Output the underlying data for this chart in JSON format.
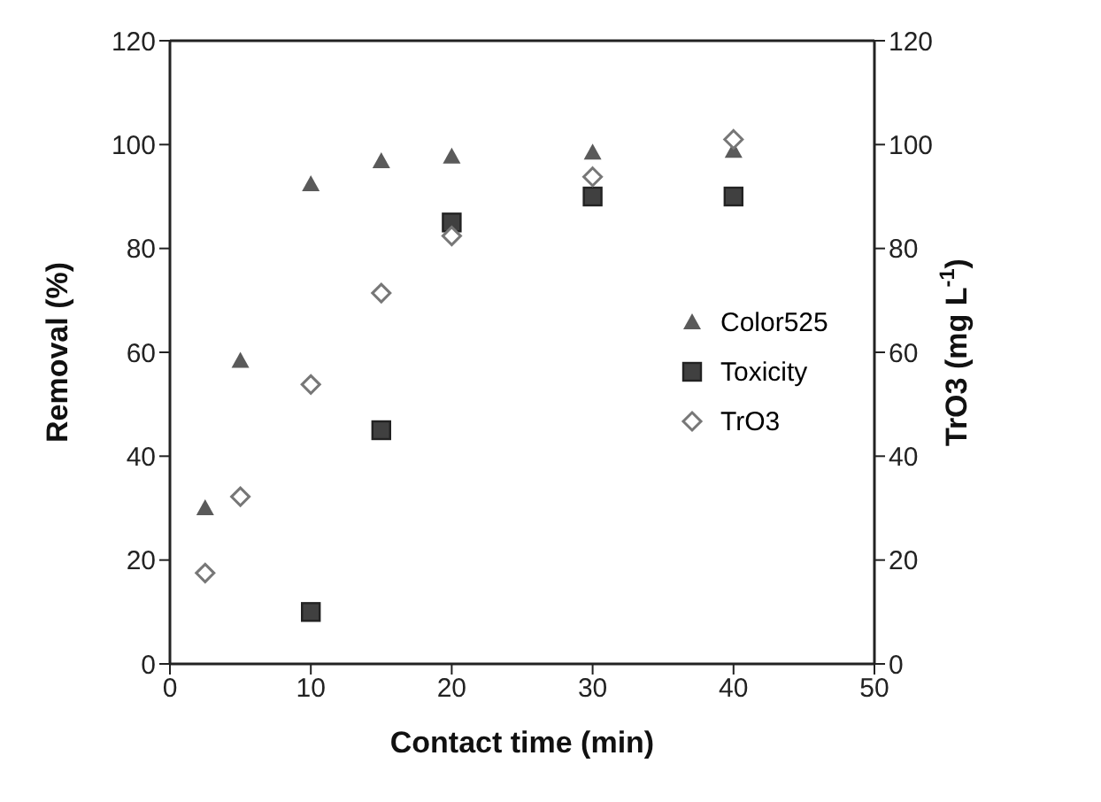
{
  "chart_data": {
    "type": "scatter",
    "xlabel": "Contact time (min)",
    "ylabel": "Removal (%)",
    "y2label": "TrO3 (mg L$^{-1}$)",
    "x": [
      2.5,
      5,
      10,
      15,
      20,
      30,
      40
    ],
    "series": [
      {
        "name": "Color525",
        "color": "#5a5a5a",
        "marker": "triangle",
        "values": [
          30,
          58.4,
          92.4,
          96.8,
          97.7,
          98.5,
          98.8
        ]
      },
      {
        "name": "Toxicity",
        "color": "#404040",
        "marker": "square",
        "x": [
          10,
          15,
          20,
          30,
          40
        ],
        "values": [
          10,
          45,
          85,
          90,
          90
        ]
      },
      {
        "name": "TrO3",
        "color": "#777777",
        "marker": "diamond",
        "axis": "y2",
        "values": [
          17.5,
          32.2,
          53.8,
          71.4,
          82.4,
          93.8,
          101
        ]
      }
    ],
    "xlim": [
      0,
      50
    ],
    "xticks": [
      0,
      10,
      20,
      30,
      40,
      50
    ],
    "ylim": [
      0,
      120
    ],
    "yticks": [
      0,
      20,
      40,
      60,
      80,
      100,
      120
    ],
    "y2lim": [
      0,
      120
    ],
    "y2ticks": [
      0,
      20,
      40,
      60,
      80,
      100,
      120
    ],
    "legend": "right"
  }
}
